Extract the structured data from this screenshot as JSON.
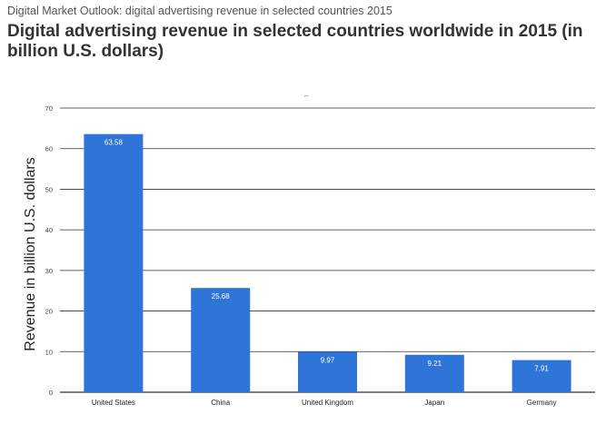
{
  "header": {
    "kicker": "Digital Market Outlook: digital advertising revenue in selected countries 2015",
    "title": "Digital advertising revenue in selected countries worldwide in 2015 (in billion U.S. dollars)"
  },
  "chart_data": {
    "type": "bar",
    "title": "",
    "legend_mark": "--",
    "categories": [
      "United States",
      "China",
      "United Kingdom",
      "Japan",
      "Germany"
    ],
    "values": [
      63.58,
      25.68,
      9.97,
      9.21,
      7.91
    ],
    "data_labels": [
      "63.58",
      "25.68",
      "9.97",
      "9.21",
      "7.91"
    ],
    "xlabel": "",
    "ylabel": "Revenue in billion U.S. dollars",
    "ylim": [
      0,
      70
    ],
    "yticks": [
      0,
      10,
      20,
      30,
      40,
      50,
      60,
      70
    ],
    "grid": true,
    "bar_color": "#2f74d8",
    "grid_color": "#333333"
  }
}
